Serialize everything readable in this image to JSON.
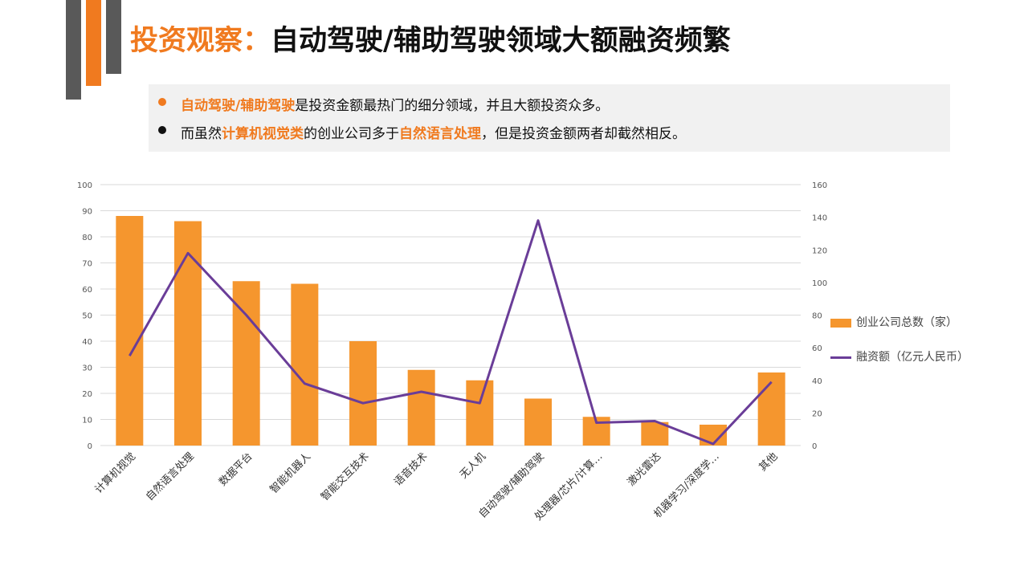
{
  "title": {
    "accent": "投资观察：",
    "main": "自动驾驶/辅助驾驶领域大额融资频繁"
  },
  "notes": [
    {
      "hl1": "自动驾驶/辅助驾驶",
      "text1": "是投资金额最热门的细分领域，并且大额投资众多。",
      "bullet_color": "#f07a1f"
    },
    {
      "pre": "而虽然",
      "hl1": "计算机视觉类",
      "mid": "的创业公司多于",
      "hl2": "自然语言处理",
      "post": "，但是投资金额两者却截然相反。",
      "bullet_color": "#111111"
    }
  ],
  "legend": {
    "bar": "创业公司总数（家）",
    "line": "融资额（亿元人民币）"
  },
  "colors": {
    "accent": "#f07a1f",
    "bar": "#f5962e",
    "line": "#6a3d98",
    "grid": "#d9d9d9",
    "tick": "#555555"
  },
  "chart_data": {
    "type": "bar+line",
    "categories": [
      "计算机视觉",
      "自然语言处理",
      "数据平台",
      "智能机器人",
      "智能交互技术",
      "语音技术",
      "无人机",
      "自动驾驶/辅助驾驶",
      "处理器/芯片/计算…",
      "激光雷达",
      "机器学习/深度学…",
      "其他"
    ],
    "series": [
      {
        "name": "创业公司总数（家）",
        "type": "bar",
        "axis": "left",
        "values": [
          88,
          86,
          63,
          62,
          40,
          29,
          25,
          18,
          11,
          9,
          8,
          28
        ]
      },
      {
        "name": "融资额（亿元人民币）",
        "type": "line",
        "axis": "right",
        "values": [
          55,
          118,
          80,
          38,
          26,
          33,
          26,
          138,
          14,
          15,
          1,
          39
        ]
      }
    ],
    "ylim_left": [
      0,
      100
    ],
    "yticks_left": [
      0,
      10,
      20,
      30,
      40,
      50,
      60,
      70,
      80,
      90,
      100
    ],
    "ylim_right": [
      0,
      160
    ],
    "yticks_right": [
      0,
      20,
      40,
      60,
      80,
      100,
      120,
      140,
      160
    ],
    "grid": true,
    "legend_position": "right"
  }
}
